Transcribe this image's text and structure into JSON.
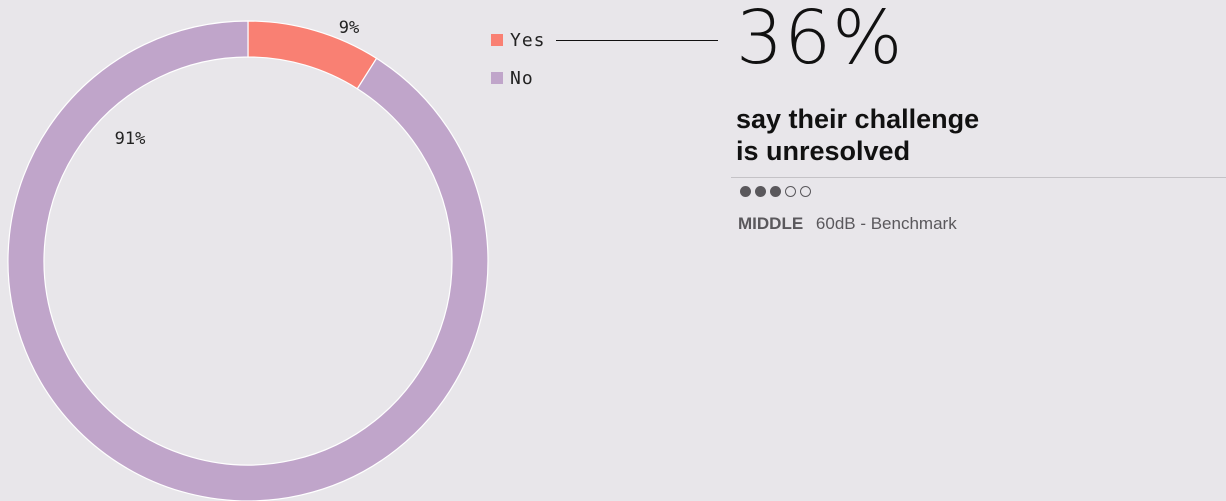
{
  "chart_data": {
    "type": "pie",
    "subtype": "donut",
    "categories": [
      "Yes",
      "No"
    ],
    "values": [
      9,
      91
    ],
    "colors": [
      "#f98073",
      "#c0a5ca"
    ],
    "slice_labels": [
      "9%",
      "91%"
    ],
    "legend": [
      "Yes",
      "No"
    ],
    "legend_placement": "top-right"
  },
  "stat": {
    "value": "36%",
    "caption_line1": "say their challenge",
    "caption_line2": "is unresolved"
  },
  "rating": {
    "filled": 3,
    "total": 5,
    "level_label": "MIDDLE",
    "benchmark_text": "60dB - Benchmark"
  }
}
